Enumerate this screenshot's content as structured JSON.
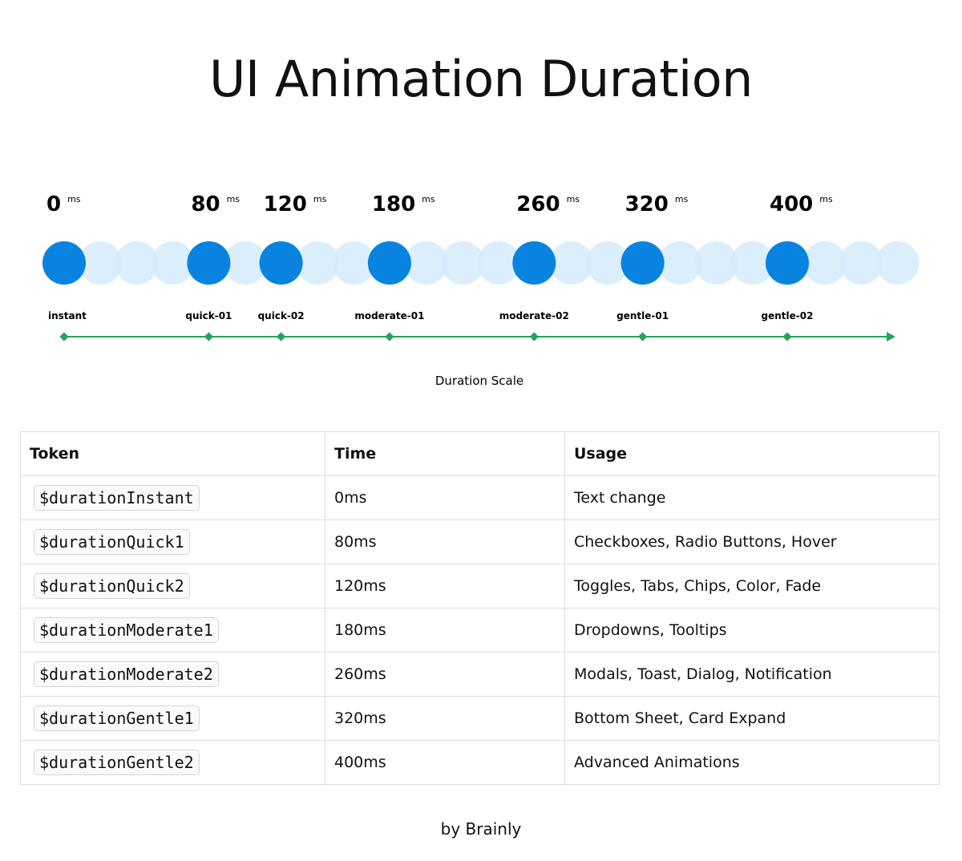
{
  "title": "UI Animation Duration",
  "scale": {
    "caption": "Duration Scale",
    "items": [
      {
        "value": 0,
        "unit": "ms",
        "label": "instant"
      },
      {
        "value": 80,
        "unit": "ms",
        "label": "quick-01"
      },
      {
        "value": 120,
        "unit": "ms",
        "label": "quick-02"
      },
      {
        "value": 180,
        "unit": "ms",
        "label": "moderate-01"
      },
      {
        "value": 260,
        "unit": "ms",
        "label": "moderate-02"
      },
      {
        "value": 320,
        "unit": "ms",
        "label": "gentle-01"
      },
      {
        "value": 400,
        "unit": "ms",
        "label": "gentle-02"
      }
    ]
  },
  "table": {
    "headers": [
      "Token",
      "Time",
      "Usage"
    ],
    "rows": [
      [
        "$durationInstant",
        "0ms",
        "Text change"
      ],
      [
        "$durationQuick1",
        "80ms",
        "Checkboxes, Radio Buttons, Hover"
      ],
      [
        "$durationQuick2",
        "120ms",
        "Toggles, Tabs, Chips, Color, Fade"
      ],
      [
        "$durationModerate1",
        "180ms",
        "Dropdowns, Tooltips"
      ],
      [
        "$durationModerate2",
        "260ms",
        "Modals, Toast, Dialog, Notification"
      ],
      [
        "$durationGentle1",
        "320ms",
        "Bottom Sheet, Card Expand"
      ],
      [
        "$durationGentle2",
        "400ms",
        "Advanced Animations"
      ]
    ]
  },
  "footer": "by Brainly"
}
